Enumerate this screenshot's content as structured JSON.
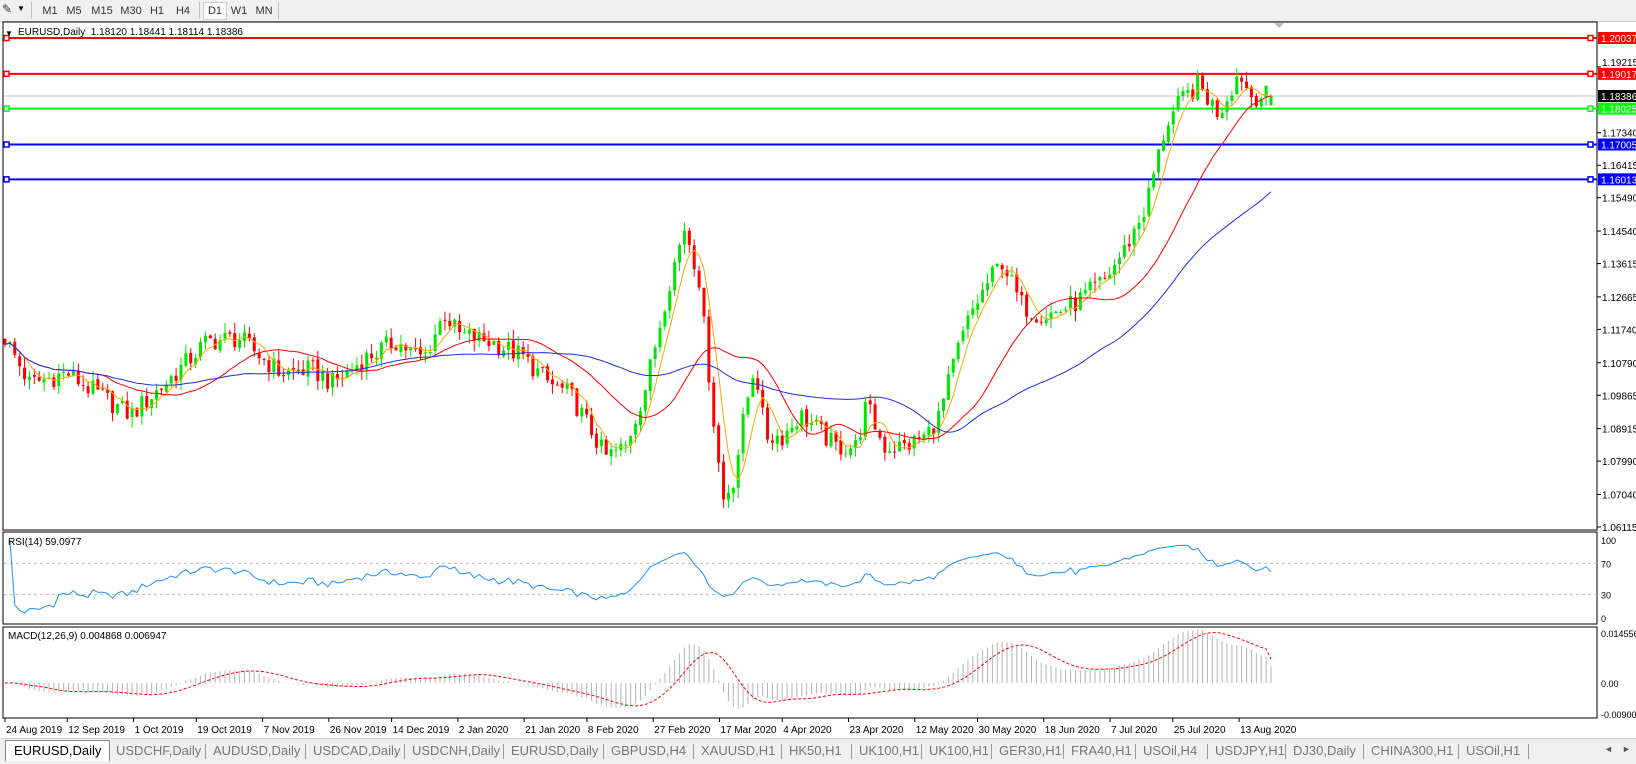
{
  "toolbar": {
    "tool_icon": "crosshair-tool-icon",
    "timeframes": [
      "M1",
      "M5",
      "M15",
      "M30",
      "H1",
      "H4",
      "D1",
      "W1",
      "MN"
    ],
    "active_timeframe": "D1"
  },
  "chart_header": {
    "title": "EURUSD,Daily  1.18120 1.18441 1.18114 1.18386"
  },
  "tabs": {
    "items": [
      "EURUSD,Daily",
      "USDCHF,Daily",
      "AUDUSD,Daily",
      "USDCAD,Daily",
      "USDCNH,Daily",
      "EURUSD,Daily",
      "GBPUSD,H4",
      "XAUUSD,H1",
      "HK50,H1",
      "UK100,H1",
      "UK100,H1",
      "GER30,H1",
      "FRA40,H1",
      "USOil,H4",
      "USDJPY,H1",
      "DJ30,Daily",
      "CHINA300,H1",
      "USOil,H1"
    ],
    "active_index": 0
  },
  "colors": {
    "bull": "#00e600",
    "bear": "#ff0000",
    "ma_fast": "#ffa500",
    "ma_mid": "#ff0000",
    "ma_slow": "#1c2fe0",
    "rsi": "#1e90ff",
    "macd_hist": "#b4b4b4",
    "macd_signal": "#ff0000"
  },
  "chart_data": {
    "type": "candlestick",
    "symbol": "EURUSD",
    "timeframe": "Daily",
    "last_bar": {
      "open": 1.1812,
      "high": 1.18441,
      "low": 1.18114,
      "close": 1.18386
    },
    "x_range": [
      "2019-08-24",
      "2020-08-21"
    ],
    "ylim": [
      1.06115,
      1.204
    ],
    "y_ticks": [
      "1.19215",
      "1.17340",
      "1.16415",
      "1.15490",
      "1.14540",
      "1.13615",
      "1.12665",
      "1.11740",
      "1.10790",
      "1.09865",
      "1.08915",
      "1.07990",
      "1.07040",
      "1.06115"
    ],
    "x_ticks": [
      "24 Aug 2019",
      "12 Sep 2019",
      "1 Oct 2019",
      "19 Oct 2019",
      "7 Nov 2019",
      "26 Nov 2019",
      "14 Dec 2019",
      "2 Jan 2020",
      "21 Jan 2020",
      "8 Feb 2020",
      "27 Feb 2020",
      "17 Mar 2020",
      "4 Apr 2020",
      "23 Apr 2020",
      "12 May 2020",
      "30 May 2020",
      "18 Jun 2020",
      "7 Jul 2020",
      "25 Jul 2020",
      "13 Aug 2020"
    ],
    "approx_closes": [
      [
        "2019-08-24",
        1.115
      ],
      [
        "2019-08-31",
        1.102
      ],
      [
        "2019-09-11",
        1.105
      ],
      [
        "2019-09-15",
        1.102
      ],
      [
        "2019-09-29",
        1.093
      ],
      [
        "2019-10-09",
        1.102
      ],
      [
        "2019-10-21",
        1.114
      ],
      [
        "2019-10-30",
        1.115
      ],
      [
        "2019-11-11",
        1.105
      ],
      [
        "2019-11-20",
        1.106
      ],
      [
        "2019-11-26",
        1.102
      ],
      [
        "2019-12-05",
        1.109
      ],
      [
        "2019-12-14",
        1.114
      ],
      [
        "2019-12-22",
        1.109
      ],
      [
        "2019-12-28",
        1.122
      ],
      [
        "2020-01-01",
        1.116
      ],
      [
        "2020-01-10",
        1.114
      ],
      [
        "2020-01-19",
        1.11
      ],
      [
        "2020-01-27",
        1.102
      ],
      [
        "2020-02-02",
        1.099
      ],
      [
        "2020-02-09",
        1.087
      ],
      [
        "2020-02-12",
        1.081
      ],
      [
        "2020-02-18",
        1.084
      ],
      [
        "2020-02-24",
        1.102
      ],
      [
        "2020-03-01",
        1.129
      ],
      [
        "2020-03-06",
        1.147
      ],
      [
        "2020-03-10",
        1.132
      ],
      [
        "2020-03-15",
        1.084
      ],
      [
        "2020-03-17",
        1.069
      ],
      [
        "2020-03-20",
        1.075
      ],
      [
        "2020-03-23",
        1.093
      ],
      [
        "2020-03-26",
        1.108
      ],
      [
        "2020-03-29",
        1.087
      ],
      [
        "2020-04-03",
        1.087
      ],
      [
        "2020-04-08",
        1.093
      ],
      [
        "2020-04-12",
        1.09
      ],
      [
        "2020-04-18",
        1.084
      ],
      [
        "2020-04-24",
        1.084
      ],
      [
        "2020-04-27",
        1.096
      ],
      [
        "2020-05-02",
        1.084
      ],
      [
        "2020-05-08",
        1.084
      ],
      [
        "2020-05-14",
        1.087
      ],
      [
        "2020-05-18",
        1.093
      ],
      [
        "2020-05-23",
        1.111
      ],
      [
        "2020-05-27",
        1.122
      ],
      [
        "2020-06-01",
        1.131
      ],
      [
        "2020-06-05",
        1.137
      ],
      [
        "2020-06-10",
        1.125
      ],
      [
        "2020-06-14",
        1.122
      ],
      [
        "2020-06-20",
        1.122
      ],
      [
        "2020-06-26",
        1.125
      ],
      [
        "2020-07-04",
        1.131
      ],
      [
        "2020-07-10",
        1.14
      ],
      [
        "2020-07-16",
        1.152
      ],
      [
        "2020-07-19",
        1.164
      ],
      [
        "2020-07-22",
        1.176
      ],
      [
        "2020-07-26",
        1.182
      ],
      [
        "2020-07-31",
        1.187
      ],
      [
        "2020-08-06",
        1.179
      ],
      [
        "2020-08-12",
        1.191
      ],
      [
        "2020-08-15",
        1.184
      ],
      [
        "2020-08-21",
        1.18386
      ]
    ],
    "moving_averages": [
      {
        "color": "#ffa500",
        "period": 5
      },
      {
        "color": "#ff0000",
        "period": 21
      },
      {
        "color": "#1c2fe0",
        "period": 50
      }
    ],
    "horizontal_lines": [
      {
        "price": "1.20037",
        "color": "#ff0000"
      },
      {
        "price": "1.19017",
        "color": "#ff0000"
      },
      {
        "price": "1.18025",
        "color": "#00ff00"
      },
      {
        "price": "1.17005",
        "color": "#0000ff"
      },
      {
        "price": "1.16013",
        "color": "#0000ff"
      }
    ],
    "current_price": "1.18386",
    "rsi": {
      "label": "RSI(14) 59.0977",
      "period": 14,
      "value": 59.0977,
      "levels": [
        70,
        30
      ],
      "y_ticks": [
        "100",
        "70",
        "30",
        "0"
      ]
    },
    "macd": {
      "label": "MACD(12,26,9) 0.004868 0.006947",
      "main": 0.004868,
      "signal": 0.006947,
      "y_ticks": [
        "0.014556",
        "0.00",
        "-0.00900"
      ]
    }
  }
}
